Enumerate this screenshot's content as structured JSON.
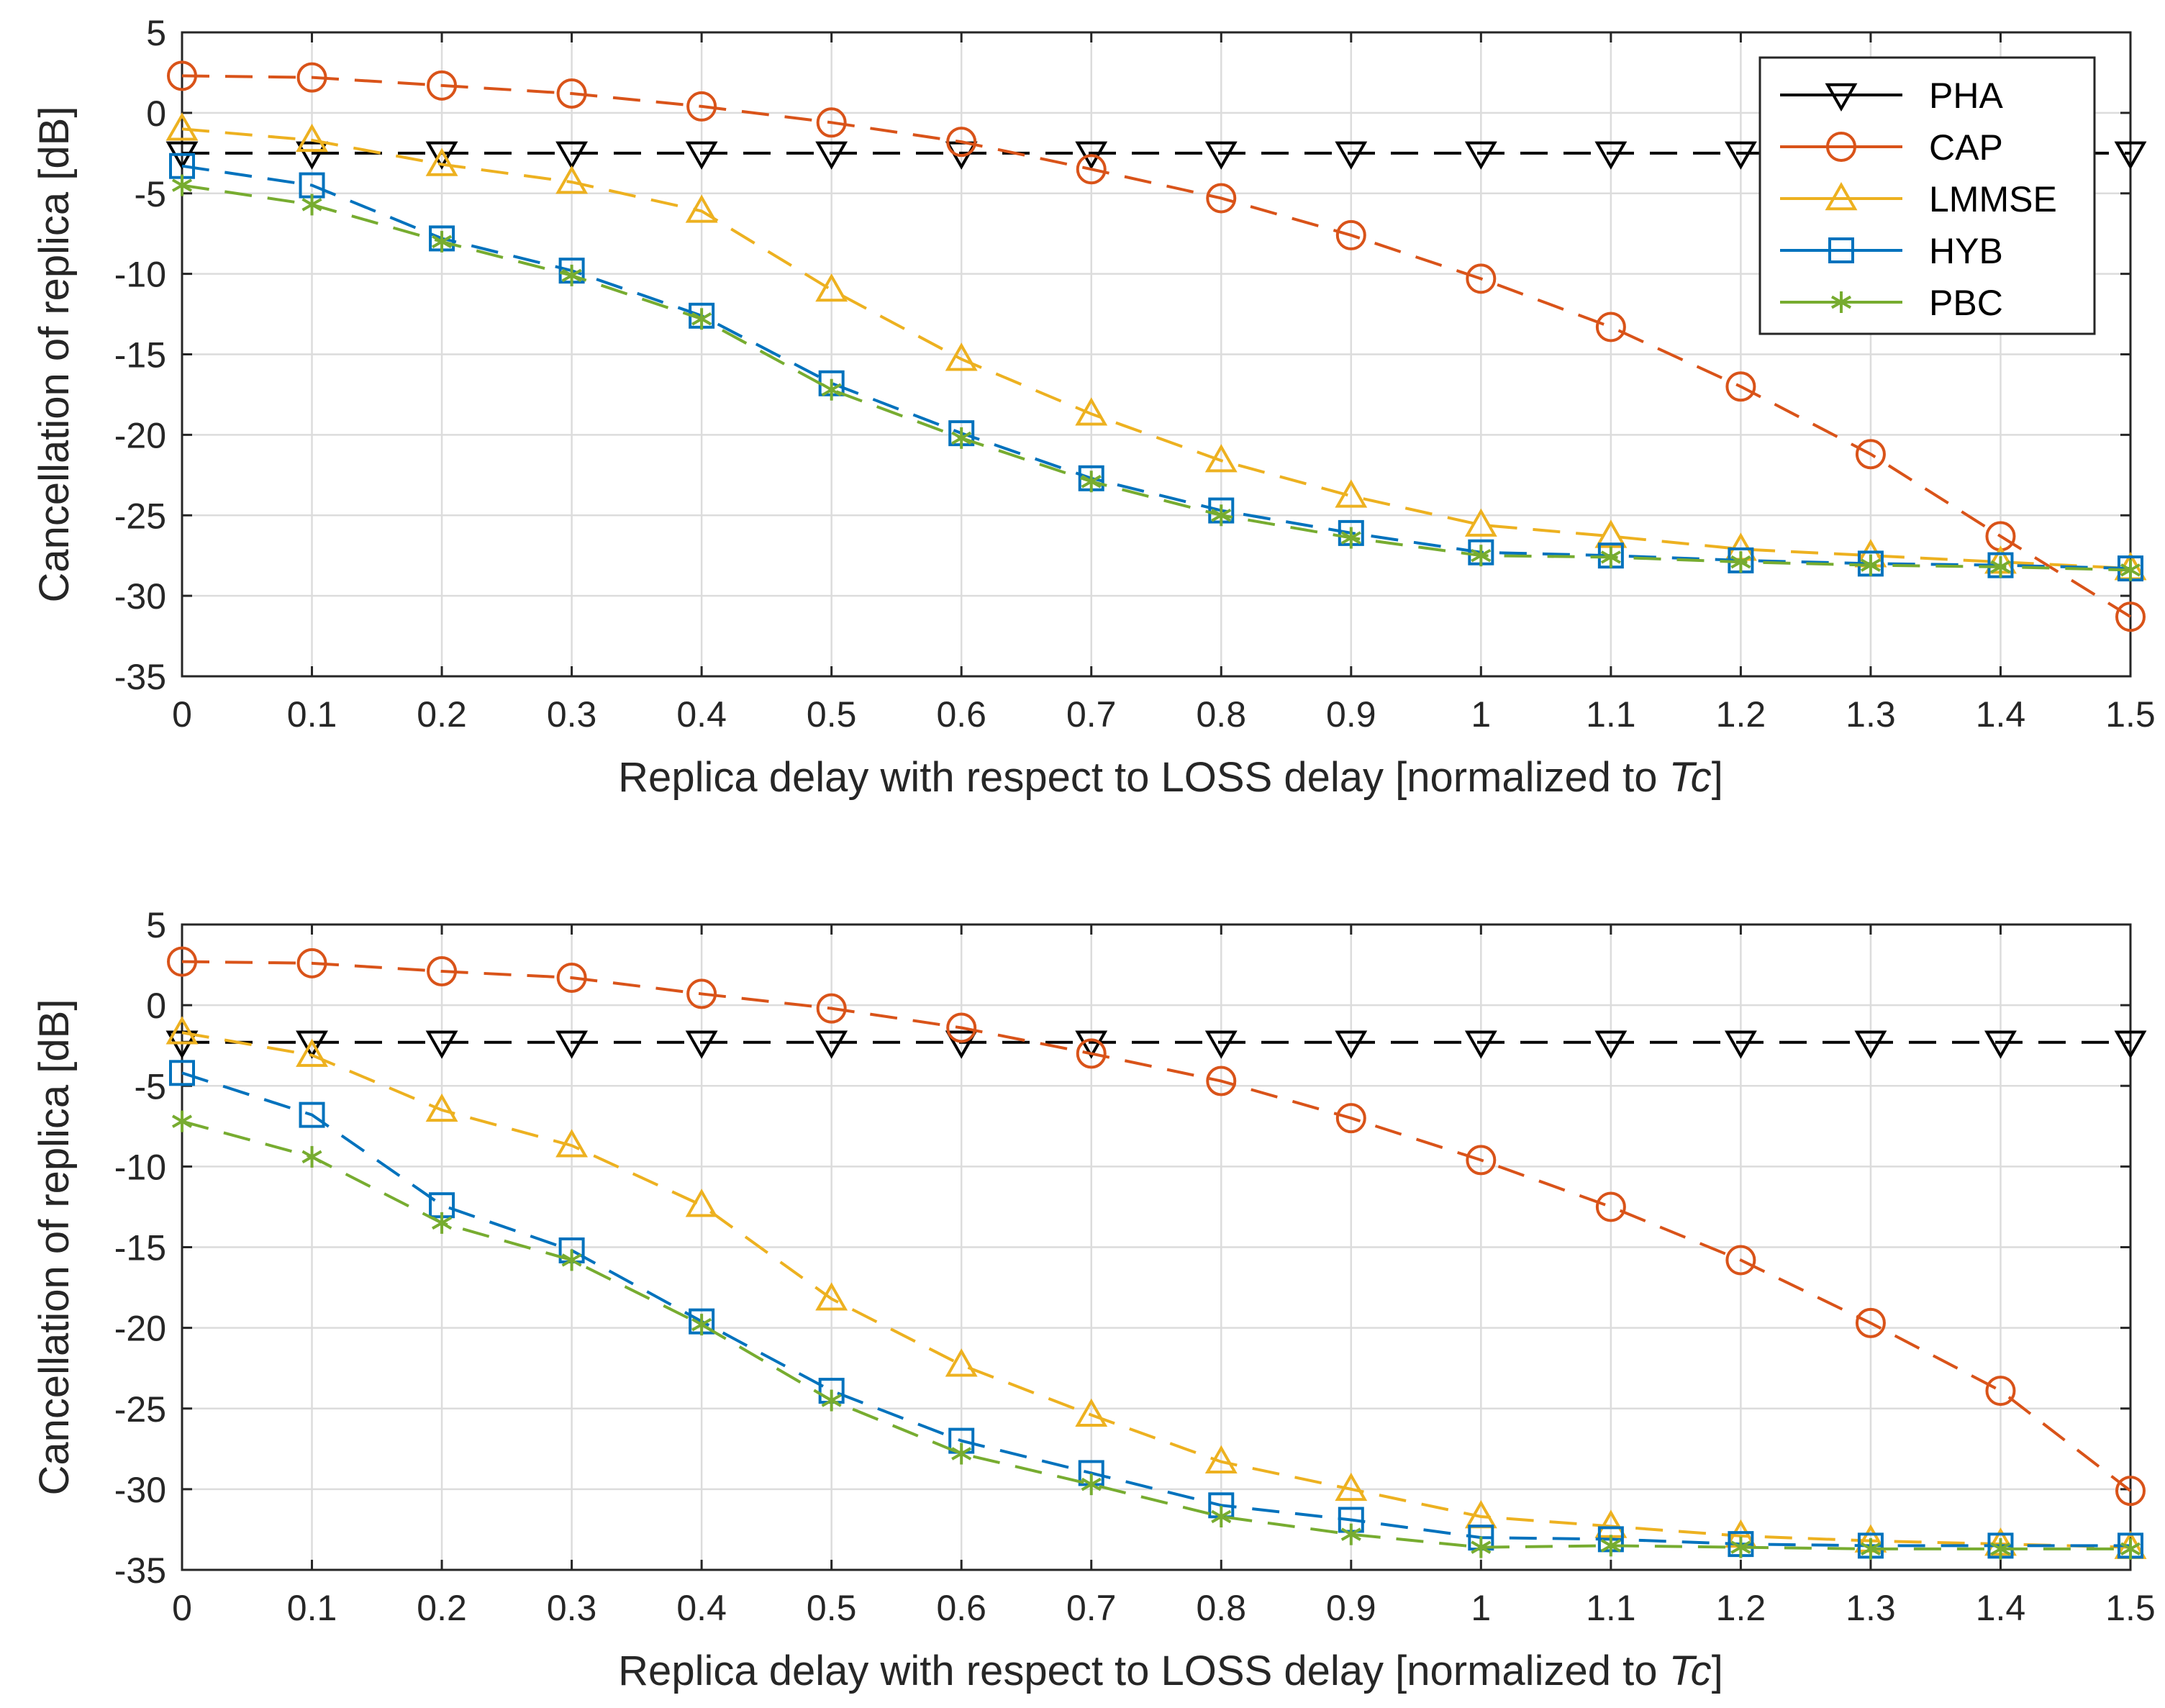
{
  "chart_data": [
    {
      "type": "line",
      "title": "",
      "xlabel_prefix": "Replica delay with respect to LOSS delay [normalized to ",
      "xlabel_var": "Tc",
      "xlabel_suffix": "]",
      "ylabel": "Cancellation of replica [dB]",
      "xlim": [
        0,
        1.5
      ],
      "ylim": [
        -35,
        5
      ],
      "x": [
        0,
        0.1,
        0.2,
        0.3,
        0.4,
        0.5,
        0.6,
        0.7,
        0.8,
        0.9,
        1.0,
        1.1,
        1.2,
        1.3,
        1.4,
        1.5
      ],
      "xtick_labels": [
        "0",
        "0.1",
        "0.2",
        "0.3",
        "0.4",
        "0.5",
        "0.6",
        "0.7",
        "0.8",
        "0.9",
        "1",
        "1.1",
        "1.2",
        "1.3",
        "1.4",
        "1.5"
      ],
      "yticks": [
        5,
        0,
        -5,
        -10,
        -15,
        -20,
        -25,
        -30,
        -35
      ],
      "ytick_labels": [
        "5",
        "0",
        "-5",
        "-10",
        "-15",
        "-20",
        "-25",
        "-30",
        "-35"
      ],
      "grid": true,
      "legend_position": "top-right",
      "series": [
        {
          "name": "PHA",
          "color": "#000000",
          "marker": "triangle-down",
          "values": [
            -2.5,
            -2.5,
            -2.5,
            -2.5,
            -2.5,
            -2.5,
            -2.5,
            -2.5,
            -2.5,
            -2.5,
            -2.5,
            -2.5,
            -2.5,
            -2.5,
            -2.5,
            -2.5
          ]
        },
        {
          "name": "CAP",
          "color": "#D95319",
          "marker": "circle",
          "values": [
            2.3,
            2.2,
            1.7,
            1.2,
            0.4,
            -0.6,
            -1.8,
            -3.5,
            -5.3,
            -7.6,
            -10.3,
            -13.3,
            -17.0,
            -21.2,
            -26.3,
            -31.3
          ]
        },
        {
          "name": "LMMSE",
          "color": "#EDB120",
          "marker": "triangle-up",
          "values": [
            -1.0,
            -1.7,
            -3.2,
            -4.3,
            -6.1,
            -11.0,
            -15.3,
            -18.7,
            -21.6,
            -23.8,
            -25.6,
            -26.3,
            -27.1,
            -27.5,
            -27.9,
            -28.3
          ]
        },
        {
          "name": "HYB",
          "color": "#0072BD",
          "marker": "square",
          "values": [
            -3.3,
            -4.5,
            -7.8,
            -9.8,
            -12.6,
            -16.8,
            -19.9,
            -22.7,
            -24.7,
            -26.1,
            -27.3,
            -27.5,
            -27.8,
            -28.0,
            -28.1,
            -28.3
          ]
        },
        {
          "name": "PBC",
          "color": "#77AC30",
          "marker": "asterisk",
          "values": [
            -4.5,
            -5.7,
            -8.0,
            -10.1,
            -12.8,
            -17.2,
            -20.2,
            -22.9,
            -25.0,
            -26.4,
            -27.5,
            -27.6,
            -27.9,
            -28.1,
            -28.2,
            -28.4
          ]
        }
      ]
    },
    {
      "type": "line",
      "title": "",
      "xlabel_prefix": "Replica delay with respect to LOSS delay [normalized to ",
      "xlabel_var": "Tc",
      "xlabel_suffix": "]",
      "ylabel": "Cancellation of replica [dB]",
      "xlim": [
        0,
        1.5
      ],
      "ylim": [
        -35,
        5
      ],
      "x": [
        0,
        0.1,
        0.2,
        0.3,
        0.4,
        0.5,
        0.6,
        0.7,
        0.8,
        0.9,
        1.0,
        1.1,
        1.2,
        1.3,
        1.4,
        1.5
      ],
      "xtick_labels": [
        "0",
        "0.1",
        "0.2",
        "0.3",
        "0.4",
        "0.5",
        "0.6",
        "0.7",
        "0.8",
        "0.9",
        "1",
        "1.1",
        "1.2",
        "1.3",
        "1.4",
        "1.5"
      ],
      "yticks": [
        5,
        0,
        -5,
        -10,
        -15,
        -20,
        -25,
        -30,
        -35
      ],
      "ytick_labels": [
        "5",
        "0",
        "-5",
        "-10",
        "-15",
        "-20",
        "-25",
        "-30",
        "-35"
      ],
      "grid": true,
      "legend_position": "none",
      "series": [
        {
          "name": "PHA",
          "color": "#000000",
          "marker": "triangle-down",
          "values": [
            -2.3,
            -2.3,
            -2.3,
            -2.3,
            -2.3,
            -2.3,
            -2.3,
            -2.3,
            -2.3,
            -2.3,
            -2.3,
            -2.3,
            -2.3,
            -2.3,
            -2.3,
            -2.3
          ]
        },
        {
          "name": "CAP",
          "color": "#D95319",
          "marker": "circle",
          "values": [
            2.7,
            2.6,
            2.1,
            1.7,
            0.7,
            -0.2,
            -1.4,
            -3.0,
            -4.7,
            -7.0,
            -9.6,
            -12.5,
            -15.8,
            -19.7,
            -23.9,
            -30.1
          ]
        },
        {
          "name": "LMMSE",
          "color": "#EDB120",
          "marker": "triangle-up",
          "values": [
            -1.7,
            -3.1,
            -6.5,
            -8.7,
            -12.4,
            -18.2,
            -22.3,
            -25.4,
            -28.3,
            -30.0,
            -31.7,
            -32.3,
            -32.9,
            -33.2,
            -33.4,
            -33.6
          ]
        },
        {
          "name": "HYB",
          "color": "#0072BD",
          "marker": "square",
          "values": [
            -4.2,
            -6.8,
            -12.4,
            -15.2,
            -19.6,
            -23.9,
            -27.0,
            -29.0,
            -31.0,
            -31.9,
            -33.0,
            -33.1,
            -33.4,
            -33.5,
            -33.5,
            -33.5
          ]
        },
        {
          "name": "PBC",
          "color": "#77AC30",
          "marker": "asterisk",
          "values": [
            -7.2,
            -9.4,
            -13.5,
            -15.8,
            -19.8,
            -24.5,
            -27.8,
            -29.7,
            -31.7,
            -32.8,
            -33.6,
            -33.5,
            -33.6,
            -33.7,
            -33.7,
            -33.7
          ]
        }
      ]
    }
  ]
}
